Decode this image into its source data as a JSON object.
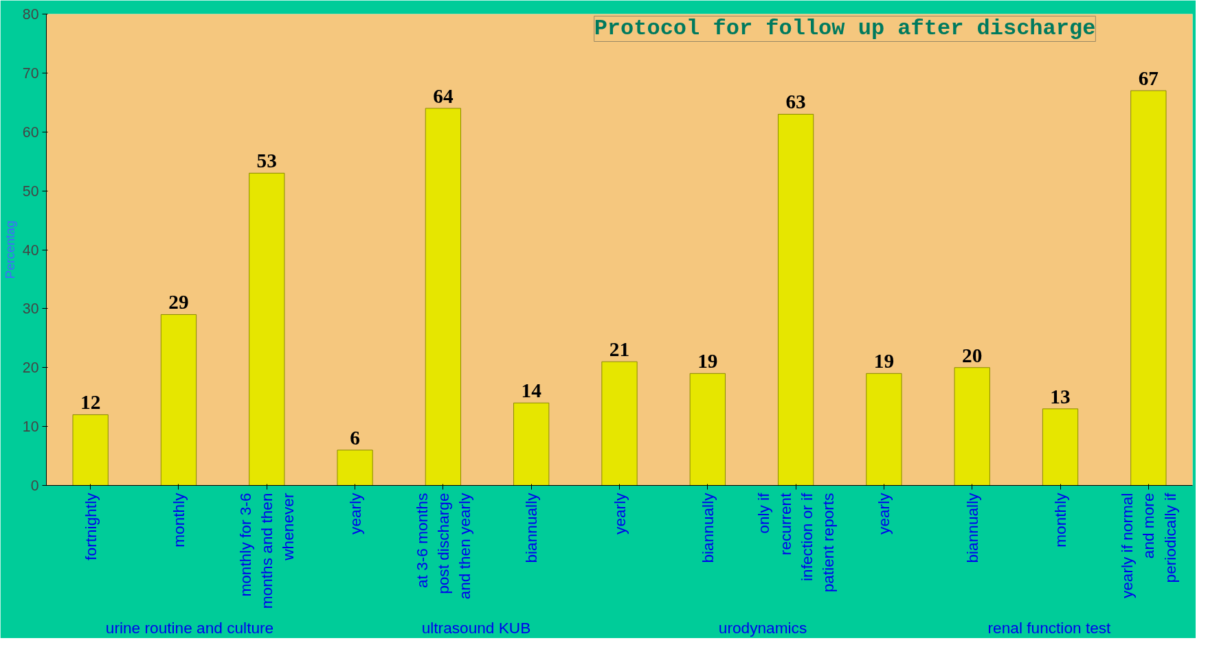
{
  "chart_data": {
    "type": "bar",
    "title": "Protocol for follow up after discharge",
    "ylabel": "Percentag",
    "categories": [
      "fortnightly",
      "monthly",
      "monthly for 3-6 months and then whenever",
      "yearly",
      "at 3-6 months post discharge and then yearly",
      "biannually",
      "yearly",
      "biannually",
      "only if recurrent infection or if patient reports",
      "yearly",
      "biannually",
      "monthly",
      "yearly if normal and more periodically if"
    ],
    "values": [
      12,
      29,
      53,
      6,
      64,
      14,
      21,
      19,
      63,
      19,
      20,
      13,
      67
    ],
    "color": "#e6e600",
    "data_labels": true,
    "ylim": [
      0,
      80
    ],
    "yticks": [
      0,
      10,
      20,
      30,
      40,
      50,
      60,
      70,
      80
    ],
    "grid": false,
    "annotations": [
      "urine routine and culture",
      "ultrasound KUB",
      "urodynamics",
      "renal function test"
    ]
  }
}
